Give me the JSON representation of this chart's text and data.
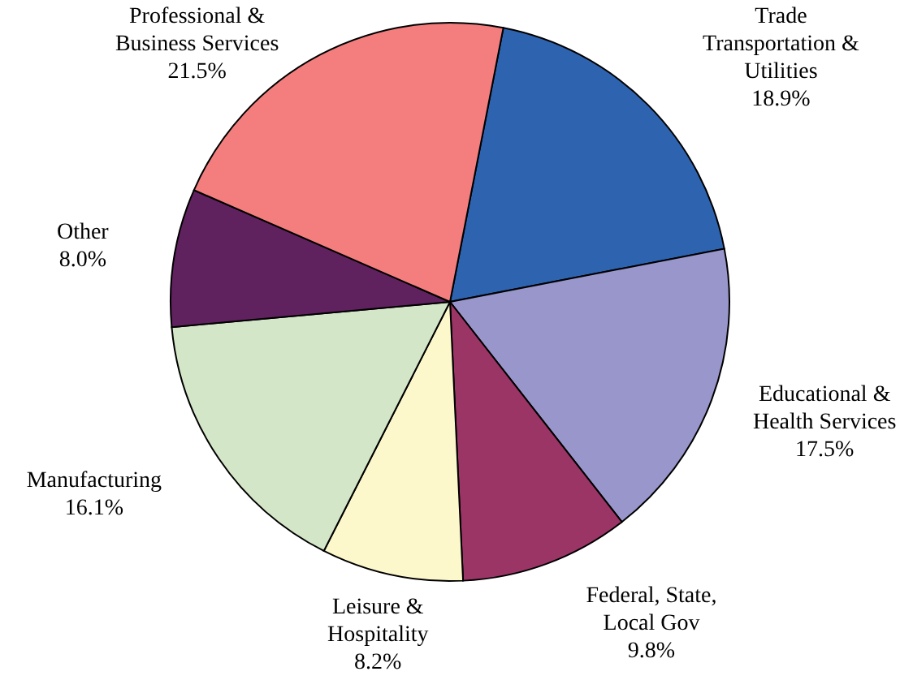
{
  "chart_data": {
    "type": "pie",
    "categories": [
      "Trade\nTransportation &\nUtilities",
      "Educational &\nHealth Services",
      "Federal, State,\nLocal Gov",
      "Leisure &\nHospitality",
      "Manufacturing",
      "Other",
      "Professional &\nBusiness Services"
    ],
    "values": [
      18.9,
      17.5,
      9.8,
      8.2,
      16.1,
      8.0,
      21.5
    ],
    "colors": [
      "#2e63b0",
      "#9896cb",
      "#9b3566",
      "#fcf8cc",
      "#d4e6c8",
      "#60215f",
      "#f47e7e"
    ],
    "value_labels": [
      "18.9%",
      "17.5%",
      "9.8%",
      "8.2%",
      "16.1%",
      "8.0%",
      "21.5%"
    ]
  }
}
